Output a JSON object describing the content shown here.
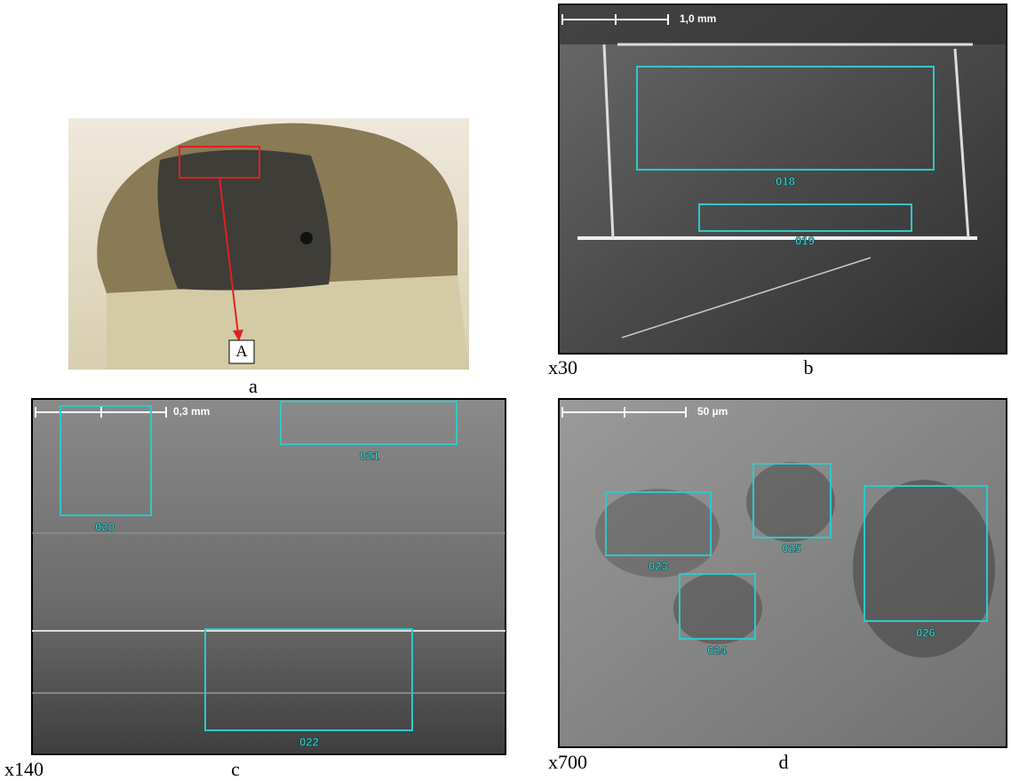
{
  "panels": {
    "a": {
      "label": "a",
      "annotation": "A"
    },
    "b": {
      "label": "b",
      "magnification": "x30",
      "scale_bar": "1,0 mm",
      "regions": [
        "018",
        "019"
      ]
    },
    "c": {
      "label": "c",
      "magnification": "x140",
      "scale_bar": "0,3 mm",
      "regions": [
        "020",
        "021",
        "022"
      ]
    },
    "d": {
      "label": "d",
      "magnification": "x700",
      "scale_bar": "50 µm",
      "regions": [
        "023",
        "024",
        "025",
        "026"
      ]
    }
  }
}
